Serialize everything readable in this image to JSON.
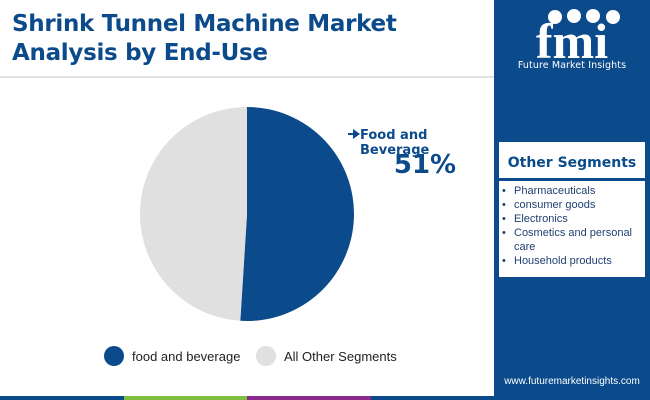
{
  "header": {
    "title": "Shrink Tunnel Machine Market Analysis by End-Use"
  },
  "brand": {
    "logo_text": "fmi",
    "name": "Future Market Insights",
    "url": "www.futuremarketinsights.com"
  },
  "sidebar": {
    "title": "Other Segments",
    "items": [
      "Pharmaceuticals",
      "consumer goods",
      "Electronics",
      "Cosmetics and personal care",
      "Household products"
    ]
  },
  "colors": {
    "primary": "#0b4a8b",
    "secondary": "#e0e0e0",
    "accent_bar": [
      "#0b4a8b",
      "#7fbf3f",
      "#8a2a8a",
      "#0b4a8b"
    ]
  },
  "chart_data": {
    "type": "pie",
    "categories": [
      "food and beverage",
      "All Other Segments"
    ],
    "values": [
      51,
      49
    ],
    "unit": "%",
    "colors": [
      "#0b4a8b",
      "#e0e0e0"
    ],
    "annotations": [
      {
        "category": "food and beverage",
        "label": "Food and Beverage",
        "value_label": "51%"
      }
    ],
    "legend_position": "bottom"
  }
}
